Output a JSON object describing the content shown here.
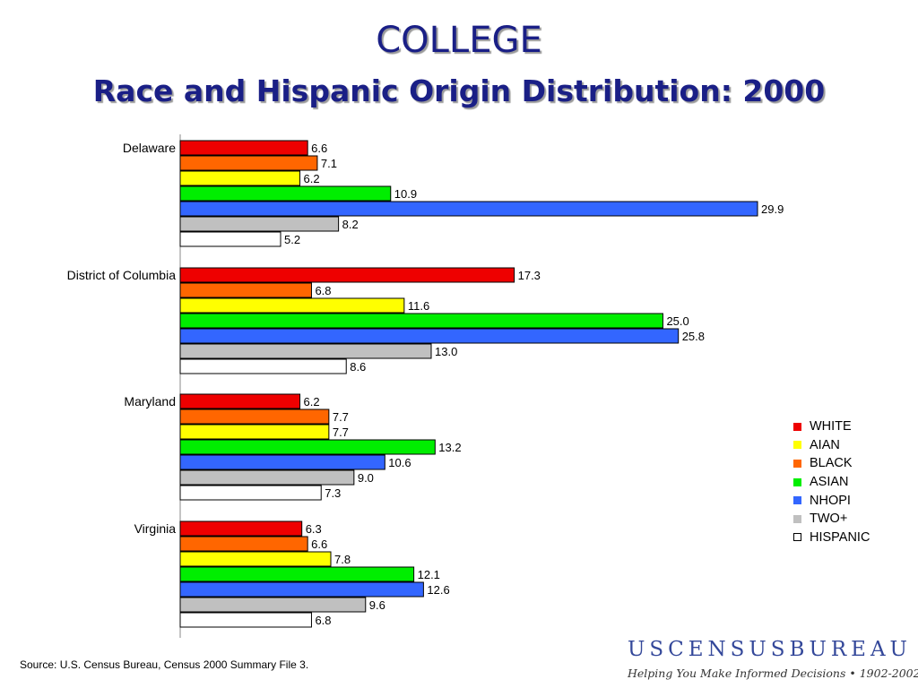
{
  "title": "COLLEGE",
  "subtitle": "Race and Hispanic Origin Distribution:  2000",
  "source": "Source:  U.S. Census Bureau, Census 2000 Summary File 3.",
  "logo": {
    "name": "USCENSUSBUREAU",
    "tagline": "Helping You Make Informed Decisions • 1902-2002"
  },
  "legend_entries": [
    {
      "label": "WHITE",
      "color": "#ee0000"
    },
    {
      "label": "AIAN",
      "color": "#ffff00"
    },
    {
      "label": "BLACK",
      "color": "#ff6600"
    },
    {
      "label": "ASIAN",
      "color": "#00ee00"
    },
    {
      "label": "NHOPI",
      "color": "#3366ff"
    },
    {
      "label": "TWO+",
      "color": "#c0c0c0"
    },
    {
      "label": "HISPANIC",
      "color": "#ffffff"
    }
  ],
  "chart_data": {
    "type": "bar",
    "orientation": "horizontal",
    "title": "COLLEGE",
    "subtitle": "Race and Hispanic Origin Distribution:  2000",
    "categories": [
      "Delaware",
      "District of Columbia",
      "Maryland",
      "Virginia"
    ],
    "bar_order": [
      "WHITE",
      "BLACK",
      "AIAN",
      "ASIAN",
      "NHOPI",
      "TWO+",
      "HISPANIC"
    ],
    "series": [
      {
        "name": "WHITE",
        "color": "#ee0000",
        "values": [
          6.6,
          17.3,
          6.2,
          6.3
        ],
        "labels": [
          "6.6",
          "17.3",
          "6.2",
          "6.3"
        ]
      },
      {
        "name": "BLACK",
        "color": "#ff6600",
        "values": [
          7.1,
          6.8,
          7.7,
          6.6
        ],
        "labels": [
          "7.1",
          "6.8",
          "7.7",
          "6.6"
        ]
      },
      {
        "name": "AIAN",
        "color": "#ffff00",
        "values": [
          6.2,
          11.6,
          7.7,
          7.8
        ],
        "labels": [
          "6.2",
          "11.6",
          "7.7",
          "7.8"
        ]
      },
      {
        "name": "ASIAN",
        "color": "#00ee00",
        "values": [
          10.9,
          25.0,
          13.2,
          12.1
        ],
        "labels": [
          "10.9",
          "25.0",
          "13.2",
          "12.1"
        ]
      },
      {
        "name": "NHOPI",
        "color": "#3366ff",
        "values": [
          29.9,
          25.8,
          10.6,
          12.6
        ],
        "labels": [
          "29.9",
          "25.8",
          "10.6",
          "12.6"
        ]
      },
      {
        "name": "TWO+",
        "color": "#c0c0c0",
        "values": [
          8.2,
          13.0,
          9.0,
          9.6
        ],
        "labels": [
          "8.2",
          "13.0",
          "9.0",
          "9.6"
        ]
      },
      {
        "name": "HISPANIC",
        "color": "#ffffff",
        "values": [
          5.2,
          8.6,
          7.3,
          6.8
        ],
        "labels": [
          "5.2",
          "8.6",
          "7.3",
          "6.8"
        ]
      }
    ],
    "xlim": [
      0,
      29.9
    ],
    "grid": false,
    "legend_position": "right"
  }
}
